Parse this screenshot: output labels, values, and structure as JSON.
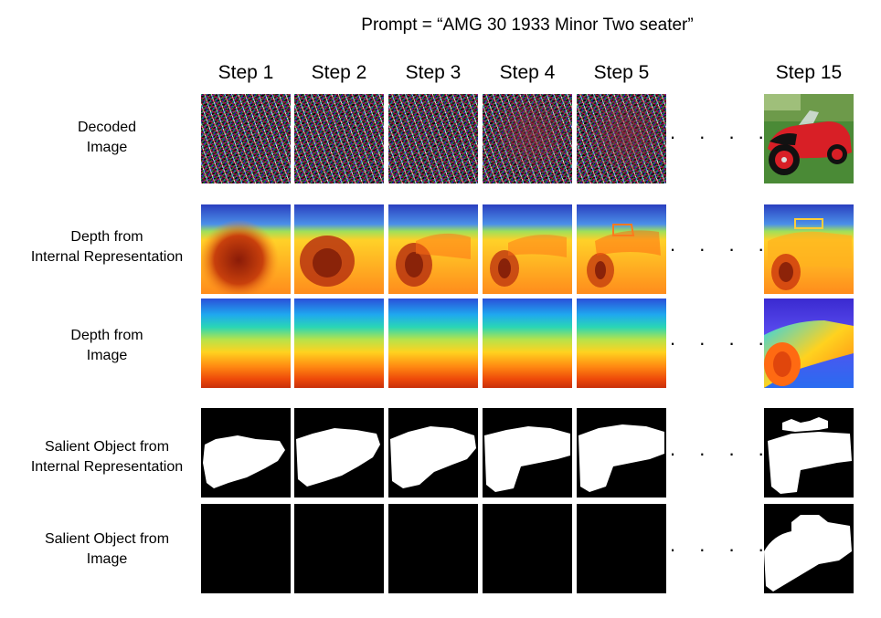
{
  "prompt": "Prompt = “AMG 30 1933 Minor Two seater”",
  "steps": [
    "Step 1",
    "Step 2",
    "Step 3",
    "Step 4",
    "Step 5",
    "Step 15"
  ],
  "ellipsis": ". . . . . .",
  "rows": [
    {
      "line1": "Decoded",
      "line2": "Image"
    },
    {
      "line1": "Depth from",
      "line2": "Internal Representation"
    },
    {
      "line1": "Depth from",
      "line2": "Image"
    },
    {
      "line1": "Salient Object from",
      "line2": "Internal Representation"
    },
    {
      "line1": "Salient Object from",
      "line2": "Image"
    }
  ],
  "colors": {
    "car_body": "#d81f26",
    "grass": "#3f7b2f",
    "mask": "#ffffff",
    "mask_bg": "#000000"
  }
}
